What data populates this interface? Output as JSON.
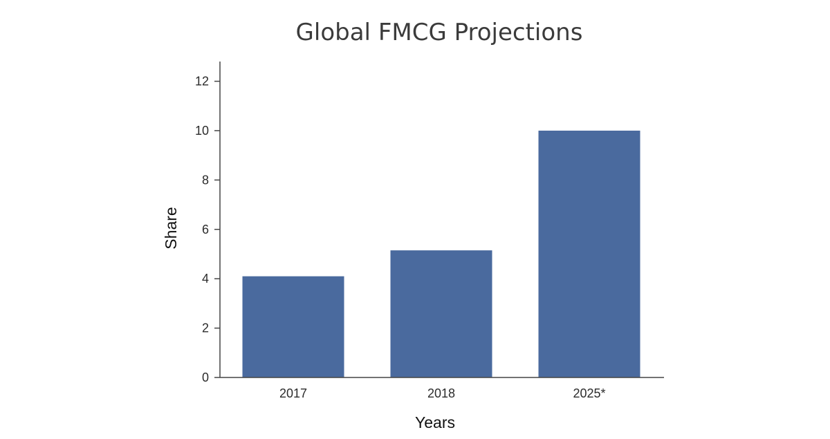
{
  "chart_data": {
    "type": "bar",
    "title": "Global FMCG Projections",
    "xlabel": "Years",
    "ylabel": "Share",
    "categories": [
      "2017",
      "2018",
      "2025*"
    ],
    "values": [
      4.1,
      5.15,
      10.0
    ],
    "ylim": [
      0,
      12.8
    ],
    "yticks": [
      "0",
      "2",
      "4",
      "6",
      "8",
      "10",
      "12"
    ],
    "bar_color": "#4a6a9e",
    "grid": false,
    "legend": "none"
  }
}
